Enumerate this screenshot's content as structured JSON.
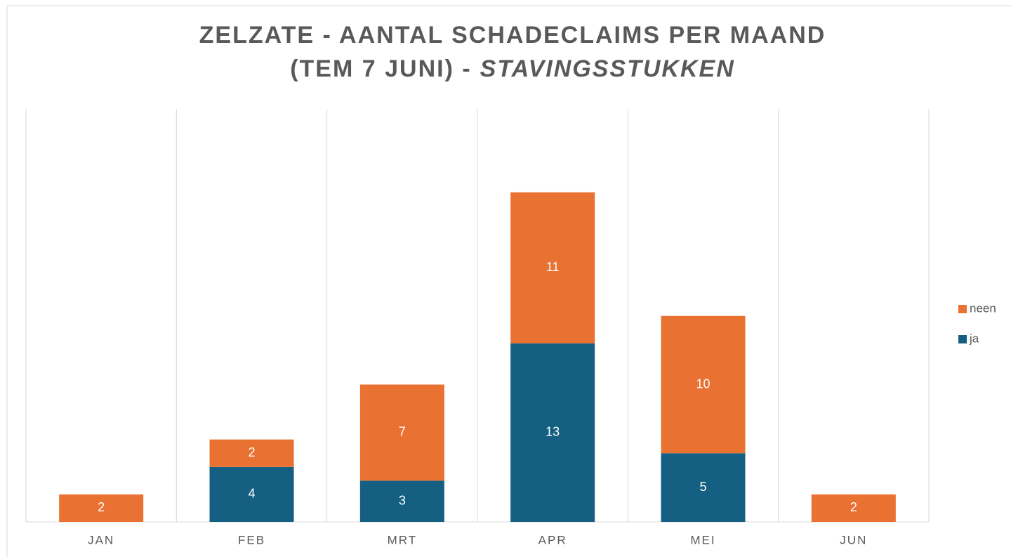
{
  "chart_data": {
    "type": "stacked_bar",
    "title": [
      "ZELZATE - AANTAL SCHADECLAIMS PER MAAND",
      "(TEM 7 JUNI) -",
      "STAVINGSSTUKKEN"
    ],
    "categories": [
      "JAN",
      "FEB",
      "MRT",
      "APR",
      "MEI",
      "JUN"
    ],
    "series": [
      {
        "name": "ja",
        "color": "#156082",
        "values": [
          null,
          4,
          3,
          13,
          5,
          null
        ]
      },
      {
        "name": "neen",
        "color": "#e97132",
        "values": [
          2,
          2,
          7,
          11,
          10,
          2
        ]
      }
    ],
    "legend": "right"
  }
}
